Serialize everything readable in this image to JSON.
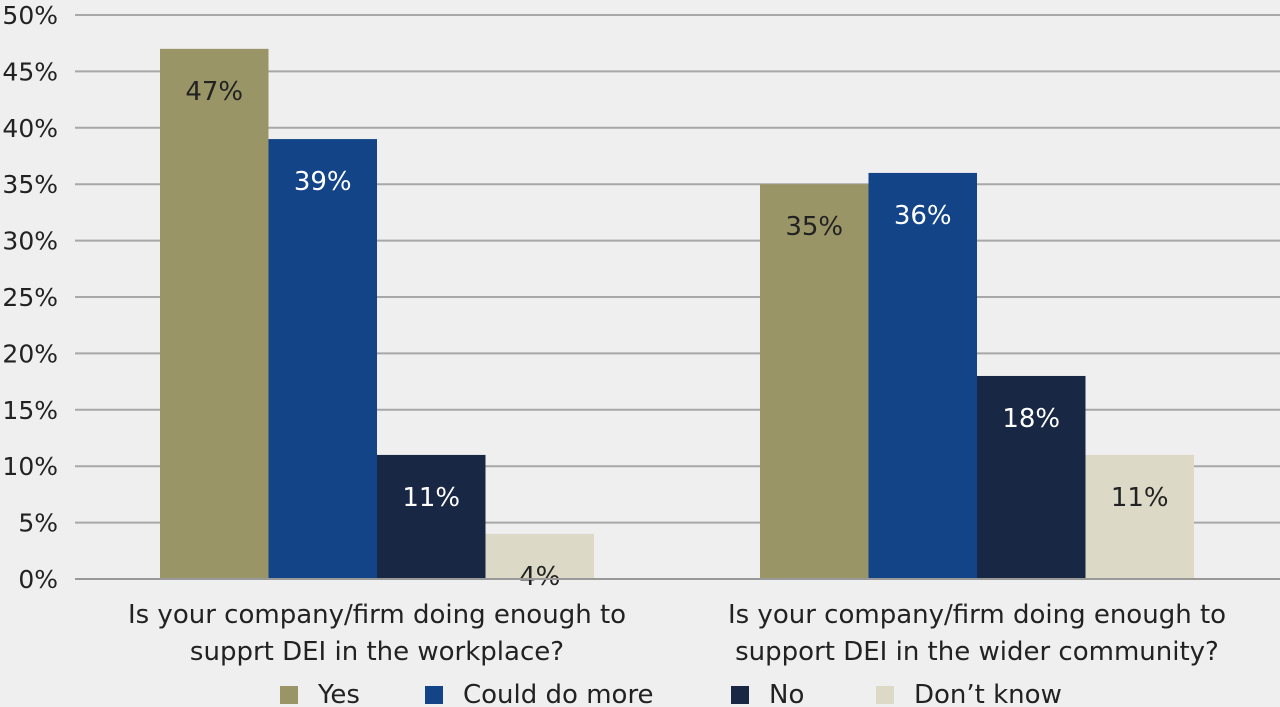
{
  "chart_data": {
    "type": "bar",
    "title": "",
    "xlabel": "",
    "ylabel": "",
    "ylim": [
      0,
      50
    ],
    "yticks": [
      0,
      5,
      10,
      15,
      20,
      25,
      30,
      35,
      40,
      45,
      50
    ],
    "ytick_labels": [
      "0%",
      "5%",
      "10%",
      "15%",
      "20%",
      "25%",
      "30%",
      "35%",
      "40%",
      "45%",
      "50%"
    ],
    "grid": true,
    "legend_position": "bottom",
    "categories": [
      [
        "Is your company/firm doing enough to",
        "supprt DEI in the workplace?"
      ],
      [
        "Is your company/firm doing enough to",
        "support DEI in the wider community?"
      ]
    ],
    "series": [
      {
        "name": "Yes",
        "color": "#9a9566",
        "label_color": "#222222",
        "values": [
          47,
          35
        ],
        "labels": [
          "47%",
          "35%"
        ]
      },
      {
        "name": "Could do more",
        "color": "#134488",
        "label_color": "#ffffff",
        "values": [
          39,
          36
        ],
        "labels": [
          "39%",
          "36%"
        ]
      },
      {
        "name": "No",
        "color": "#182744",
        "label_color": "#ffffff",
        "values": [
          11,
          18
        ],
        "labels": [
          "11%",
          "18%"
        ]
      },
      {
        "name": "Don’t know",
        "color": "#dcd9c7",
        "label_color": "#222222",
        "values": [
          4,
          11
        ],
        "labels": [
          "4%",
          "11%"
        ]
      }
    ]
  }
}
